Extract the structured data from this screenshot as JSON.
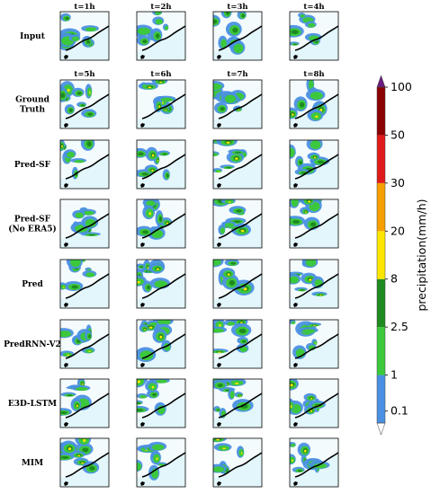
{
  "chart_data": {
    "type": "heatmap",
    "input_times": [
      "t=1h",
      "t=2h",
      "t=3h",
      "t=4h"
    ],
    "output_times": [
      "t=5h",
      "t=6h",
      "t=7h",
      "t=8h"
    ],
    "rows": [
      "Input",
      "Ground Truth",
      "Pred-SF",
      "Pred-SF (No ERA5)",
      "Pred",
      "PredRNN-V2",
      "E3D-LSTM",
      "MIM"
    ],
    "row_label_lines": [
      [
        "Input"
      ],
      [
        "Ground",
        "Truth"
      ],
      [
        "Pred-SF"
      ],
      [
        "Pred-SF",
        "(No ERA5)"
      ],
      [
        "Pred"
      ],
      [
        "PredRNN-V2"
      ],
      [
        "E3D-LSTM"
      ],
      [
        "MIM"
      ]
    ],
    "colorbar": {
      "label": "precipitation(mm/h)",
      "ticks": [
        "0.1",
        "1",
        "2.5",
        "8",
        "20",
        "30",
        "50",
        "100"
      ],
      "colors": [
        "#4a90e2",
        "#3cc83c",
        "#1f8a1f",
        "#ffe600",
        "#f5a000",
        "#e01a1a",
        "#8b0000"
      ]
    },
    "colors": {
      "background": "#e2f6fb",
      "land": "#f4fbfd",
      "coast": "#000000"
    }
  }
}
